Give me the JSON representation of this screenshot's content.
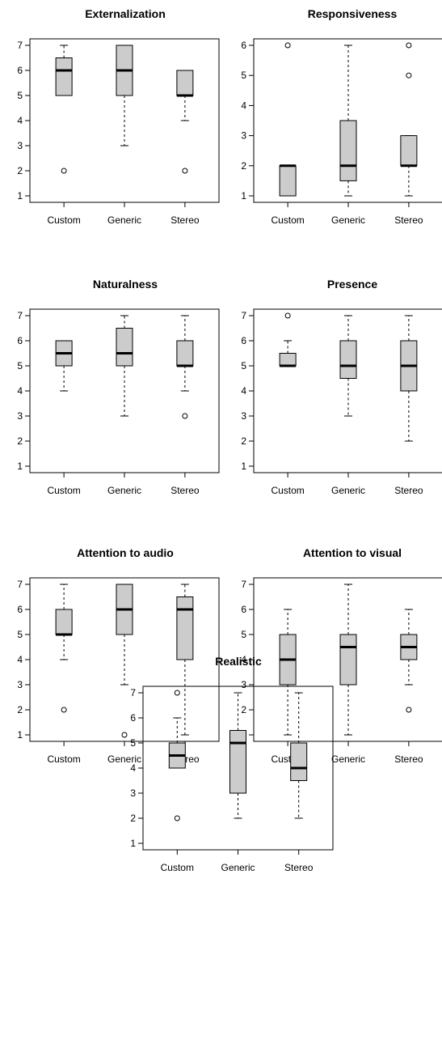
{
  "chart_data": [
    {
      "type": "boxplot",
      "title": "Externalization",
      "categories": [
        "Custom",
        "Generic",
        "Stereo"
      ],
      "ylim": [
        1,
        7
      ],
      "yticks": [
        1,
        2,
        3,
        4,
        5,
        6,
        7
      ],
      "box_fill": "#cccccc",
      "boxes": [
        {
          "category": "Custom",
          "whisker_low": 5,
          "q1": 5,
          "median": 6,
          "q3": 6.5,
          "whisker_high": 7,
          "outliers": [
            2
          ]
        },
        {
          "category": "Generic",
          "whisker_low": 3,
          "q1": 5,
          "median": 6,
          "q3": 7,
          "whisker_high": 7,
          "outliers": []
        },
        {
          "category": "Stereo",
          "whisker_low": 4,
          "q1": 5,
          "median": 5,
          "q3": 6,
          "whisker_high": 6,
          "outliers": [
            2
          ]
        }
      ]
    },
    {
      "type": "boxplot",
      "title": "Responsiveness",
      "categories": [
        "Custom",
        "Generic",
        "Stereo"
      ],
      "ylim": [
        1,
        6
      ],
      "yticks": [
        1,
        2,
        3,
        4,
        5,
        6
      ],
      "box_fill": "#cccccc",
      "boxes": [
        {
          "category": "Custom",
          "whisker_low": 1,
          "q1": 1,
          "median": 2,
          "q3": 2,
          "whisker_high": 2,
          "outliers": [
            6
          ]
        },
        {
          "category": "Generic",
          "whisker_low": 1,
          "q1": 1.5,
          "median": 2,
          "q3": 3.5,
          "whisker_high": 6,
          "outliers": []
        },
        {
          "category": "Stereo",
          "whisker_low": 1,
          "q1": 2,
          "median": 2,
          "q3": 3,
          "whisker_high": 3,
          "outliers": [
            5,
            6
          ]
        }
      ]
    },
    {
      "type": "boxplot",
      "title": "Naturalness",
      "categories": [
        "Custom",
        "Generic",
        "Stereo"
      ],
      "ylim": [
        1,
        7
      ],
      "yticks": [
        1,
        2,
        3,
        4,
        5,
        6,
        7
      ],
      "box_fill": "#cccccc",
      "boxes": [
        {
          "category": "Custom",
          "whisker_low": 4,
          "q1": 5,
          "median": 5.5,
          "q3": 6,
          "whisker_high": 6,
          "outliers": []
        },
        {
          "category": "Generic",
          "whisker_low": 3,
          "q1": 5,
          "median": 5.5,
          "q3": 6.5,
          "whisker_high": 7,
          "outliers": []
        },
        {
          "category": "Stereo",
          "whisker_low": 4,
          "q1": 5,
          "median": 5,
          "q3": 6,
          "whisker_high": 7,
          "outliers": [
            3
          ]
        }
      ]
    },
    {
      "type": "boxplot",
      "title": "Presence",
      "categories": [
        "Custom",
        "Generic",
        "Stereo"
      ],
      "ylim": [
        1,
        7
      ],
      "yticks": [
        1,
        2,
        3,
        4,
        5,
        6,
        7
      ],
      "box_fill": "#cccccc",
      "boxes": [
        {
          "category": "Custom",
          "whisker_low": 5,
          "q1": 5,
          "median": 5,
          "q3": 5.5,
          "whisker_high": 6,
          "outliers": [
            7
          ]
        },
        {
          "category": "Generic",
          "whisker_low": 3,
          "q1": 4.5,
          "median": 5,
          "q3": 6,
          "whisker_high": 7,
          "outliers": []
        },
        {
          "category": "Stereo",
          "whisker_low": 2,
          "q1": 4,
          "median": 5,
          "q3": 6,
          "whisker_high": 7,
          "outliers": []
        }
      ]
    },
    {
      "type": "boxplot",
      "title": "Attention to audio",
      "categories": [
        "Custom",
        "Generic",
        "Stereo"
      ],
      "ylim": [
        1,
        7
      ],
      "yticks": [
        1,
        2,
        3,
        4,
        5,
        6,
        7
      ],
      "box_fill": "#cccccc",
      "boxes": [
        {
          "category": "Custom",
          "whisker_low": 4,
          "q1": 5,
          "median": 5,
          "q3": 6,
          "whisker_high": 7,
          "outliers": [
            2
          ]
        },
        {
          "category": "Generic",
          "whisker_low": 3,
          "q1": 5,
          "median": 6,
          "q3": 7,
          "whisker_high": 7,
          "outliers": [
            1
          ]
        },
        {
          "category": "Stereo",
          "whisker_low": 1,
          "q1": 4,
          "median": 6,
          "q3": 6.5,
          "whisker_high": 7,
          "outliers": []
        }
      ]
    },
    {
      "type": "boxplot",
      "title": "Attention to visual",
      "categories": [
        "Custom",
        "Generic",
        "Stereo"
      ],
      "ylim": [
        1,
        7
      ],
      "yticks": [
        1,
        2,
        3,
        4,
        5,
        6,
        7
      ],
      "box_fill": "#cccccc",
      "boxes": [
        {
          "category": "Custom",
          "whisker_low": 1,
          "q1": 3,
          "median": 4,
          "q3": 5,
          "whisker_high": 6,
          "outliers": []
        },
        {
          "category": "Generic",
          "whisker_low": 1,
          "q1": 3,
          "median": 4.5,
          "q3": 5,
          "whisker_high": 7,
          "outliers": []
        },
        {
          "category": "Stereo",
          "whisker_low": 3,
          "q1": 4,
          "median": 4.5,
          "q3": 5,
          "whisker_high": 6,
          "outliers": [
            2
          ]
        }
      ]
    },
    {
      "type": "boxplot",
      "title": "Realistic",
      "categories": [
        "Custom",
        "Generic",
        "Stereo"
      ],
      "ylim": [
        1,
        7
      ],
      "yticks": [
        1,
        2,
        3,
        4,
        5,
        6,
        7
      ],
      "box_fill": "#cccccc",
      "boxes": [
        {
          "category": "Custom",
          "whisker_low": 4,
          "q1": 4,
          "median": 4.5,
          "q3": 5,
          "whisker_high": 6,
          "outliers": [
            2,
            7
          ]
        },
        {
          "category": "Generic",
          "whisker_low": 2,
          "q1": 3,
          "median": 5,
          "q3": 5.5,
          "whisker_high": 7,
          "outliers": []
        },
        {
          "category": "Stereo",
          "whisker_low": 2,
          "q1": 3.5,
          "median": 4,
          "q3": 5,
          "whisker_high": 7,
          "outliers": []
        }
      ]
    }
  ]
}
